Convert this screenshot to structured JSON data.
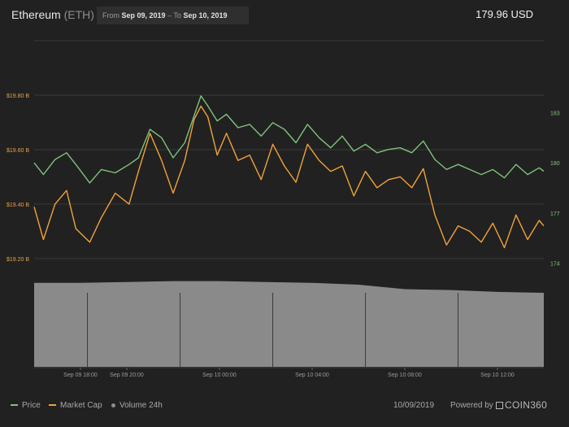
{
  "header": {
    "coin_name": "Ethereum",
    "coin_ticker": "(ETH)",
    "from_label": "From",
    "from_date": "Sep 09, 2019",
    "range_sep": "–",
    "to_label": "To",
    "to_date": "Sep 10, 2019",
    "price": "179.96 USD"
  },
  "footer": {
    "legend": [
      {
        "label": "Price",
        "color": "#7fc27a"
      },
      {
        "label": "Market Cap",
        "color": "#f0a23a"
      },
      {
        "label": "Volume 24h",
        "color": "#8c8c8c"
      }
    ],
    "date": "10/09/2019",
    "powered_by": "Powered by",
    "brand": "COIN360"
  },
  "chart_data": {
    "type": "line",
    "x_axis": {
      "start": "Sep 09 16:00",
      "end": "Sep 10 14:00",
      "ticks": [
        "Sep 09 18:00",
        "Sep 09 20:00",
        "Sep 10 00:00",
        "Sep 10 04:00",
        "Sep 10 08:00",
        "Sep 10 12:00"
      ],
      "tick_hours": [
        2,
        4,
        8,
        12,
        16,
        20
      ],
      "span_hours": 22
    },
    "left_axis": {
      "ticks": [
        "$19.20 B",
        "$19.40 B",
        "$19.60 B",
        "$19.80 B"
      ],
      "values": [
        19.2,
        19.4,
        19.6,
        19.8
      ],
      "range": [
        19.14,
        20.0
      ],
      "unit": "B USD"
    },
    "right_axis": {
      "ticks": [
        "174",
        "177",
        "180",
        "183"
      ],
      "values": [
        174,
        177,
        180,
        183
      ],
      "range": [
        173.3,
        187.3
      ],
      "unit": "USD"
    },
    "grid": true,
    "legend_position": "bottom-left",
    "series": [
      {
        "name": "Price",
        "axis": "right",
        "color": "#7fc27a",
        "x_hours": [
          0,
          0.4,
          0.9,
          1.4,
          1.8,
          2.4,
          2.9,
          3.5,
          4.1,
          4.5,
          5.0,
          5.5,
          6.0,
          6.5,
          6.9,
          7.2,
          7.5,
          7.9,
          8.3,
          8.8,
          9.3,
          9.8,
          10.3,
          10.8,
          11.3,
          11.8,
          12.3,
          12.8,
          13.3,
          13.8,
          14.3,
          14.8,
          15.3,
          15.8,
          16.3,
          16.8,
          17.3,
          17.8,
          18.3,
          18.8,
          19.3,
          19.8,
          20.3,
          20.8,
          21.3,
          21.8,
          22
        ],
        "values": [
          180.0,
          179.3,
          180.2,
          180.6,
          179.9,
          178.8,
          179.6,
          179.4,
          179.9,
          180.3,
          182.0,
          181.5,
          180.3,
          181.2,
          182.8,
          184.0,
          183.4,
          182.5,
          182.9,
          182.1,
          182.3,
          181.6,
          182.4,
          182.0,
          181.2,
          182.3,
          181.5,
          180.9,
          181.6,
          180.7,
          181.1,
          180.6,
          180.8,
          180.9,
          180.6,
          181.3,
          180.2,
          179.6,
          179.9,
          179.6,
          179.3,
          179.6,
          179.1,
          179.9,
          179.3,
          179.7,
          179.5
        ]
      },
      {
        "name": "Market Cap",
        "axis": "left",
        "color": "#f0a23a",
        "x_hours": [
          0,
          0.4,
          0.9,
          1.4,
          1.8,
          2.4,
          2.9,
          3.5,
          4.1,
          4.5,
          5.0,
          5.5,
          6.0,
          6.5,
          6.9,
          7.2,
          7.5,
          7.9,
          8.3,
          8.8,
          9.3,
          9.8,
          10.3,
          10.8,
          11.3,
          11.8,
          12.3,
          12.8,
          13.3,
          13.8,
          14.3,
          14.8,
          15.3,
          15.8,
          16.3,
          16.8,
          17.3,
          17.8,
          18.3,
          18.8,
          19.3,
          19.8,
          20.3,
          20.8,
          21.3,
          21.8,
          22
        ],
        "values": [
          19.39,
          19.27,
          19.4,
          19.45,
          19.31,
          19.26,
          19.35,
          19.44,
          19.4,
          19.52,
          19.66,
          19.56,
          19.44,
          19.56,
          19.71,
          19.76,
          19.72,
          19.58,
          19.66,
          19.56,
          19.58,
          19.49,
          19.62,
          19.54,
          19.48,
          19.62,
          19.56,
          19.52,
          19.54,
          19.43,
          19.52,
          19.46,
          19.49,
          19.5,
          19.46,
          19.53,
          19.36,
          19.25,
          19.32,
          19.3,
          19.26,
          19.33,
          19.24,
          19.36,
          19.27,
          19.34,
          19.32
        ]
      },
      {
        "name": "Volume 24h",
        "color": "#8c8c8c",
        "x_hours": [
          0,
          2,
          4,
          6,
          8,
          10,
          12,
          14,
          16,
          18,
          20,
          22
        ],
        "values": [
          0.93,
          0.93,
          0.94,
          0.95,
          0.95,
          0.94,
          0.93,
          0.91,
          0.86,
          0.85,
          0.83,
          0.82
        ]
      }
    ]
  }
}
